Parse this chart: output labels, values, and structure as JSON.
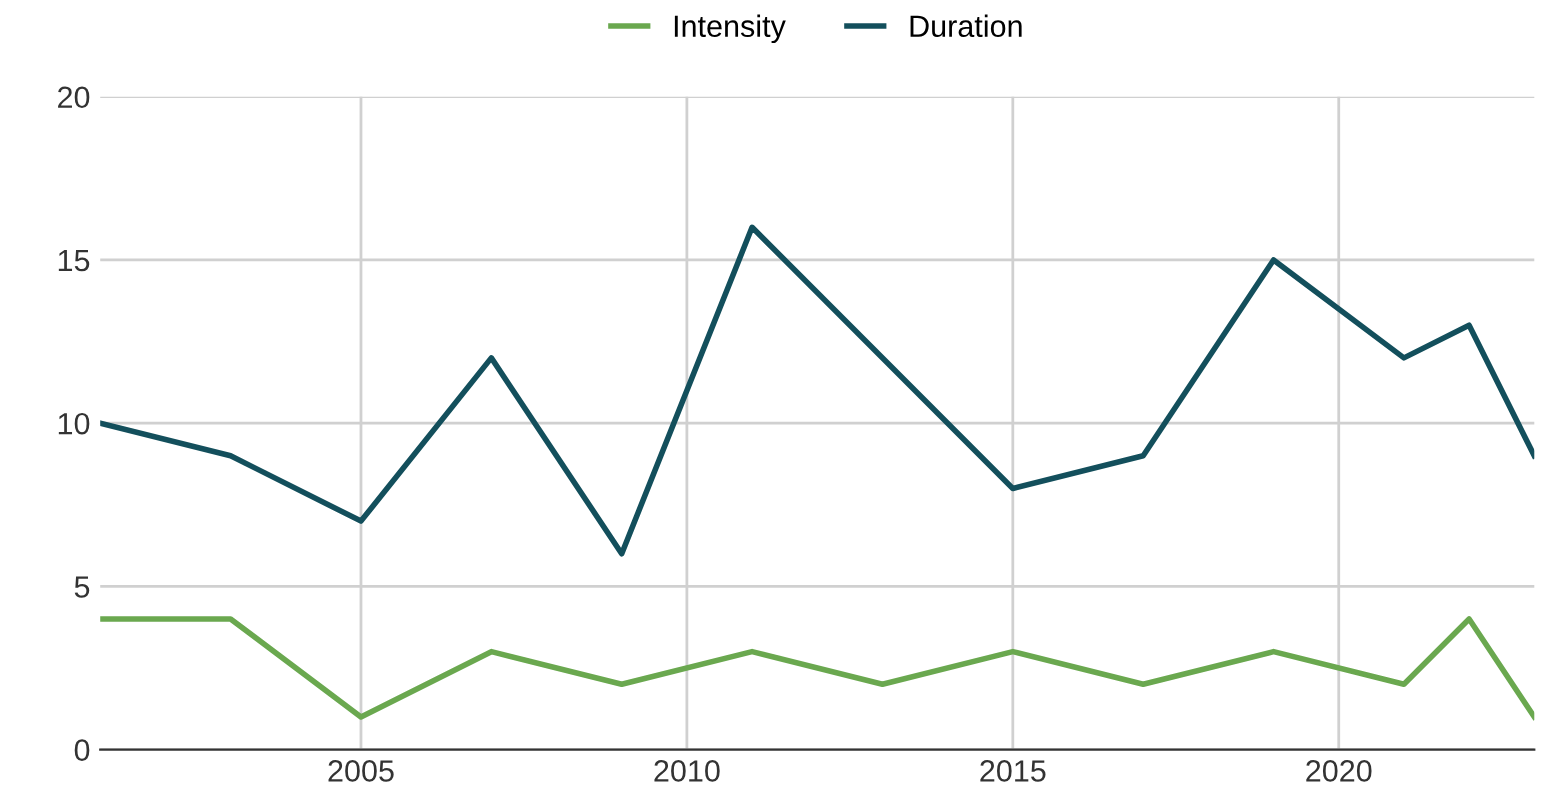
{
  "chart_data": {
    "type": "line",
    "x": [
      2001,
      2003,
      2005,
      2007,
      2009,
      2011,
      2013,
      2015,
      2017,
      2019,
      2021,
      2022,
      2023
    ],
    "series": [
      {
        "name": "Intensity",
        "color": "#6aa84f",
        "values": [
          4,
          4,
          1,
          3,
          2,
          3,
          2,
          3,
          2,
          3,
          2,
          4,
          1
        ]
      },
      {
        "name": "Duration",
        "color": "#134f5c",
        "x": [
          2001,
          2003,
          2005,
          2007,
          2009,
          2011,
          2015,
          2017,
          2019,
          2021,
          2022,
          2023
        ],
        "values": [
          10,
          9,
          7,
          12,
          6,
          16,
          8,
          9,
          15,
          12,
          13,
          9
        ]
      }
    ],
    "xlim": [
      2001,
      2023
    ],
    "xticks": [
      2005,
      2010,
      2015,
      2020
    ],
    "ylim": [
      0,
      20
    ],
    "yticks": [
      0,
      5,
      10,
      15,
      20
    ],
    "grid": true,
    "legend": "top",
    "marker": "none",
    "line_style": "solid"
  }
}
